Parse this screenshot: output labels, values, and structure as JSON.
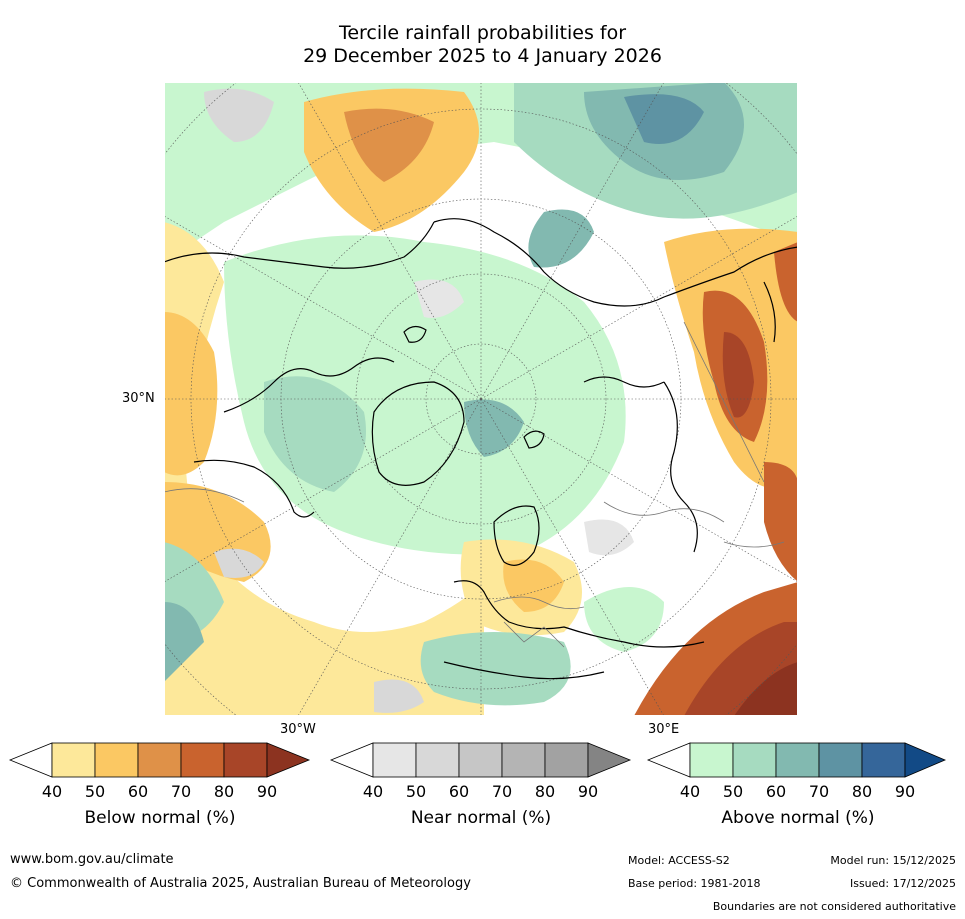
{
  "title": {
    "line1": "Tercile rainfall probabilities for",
    "line2": "29 December 2025 to 4 January 2026"
  },
  "map": {
    "lat_label": "30°N",
    "lon_labels": {
      "west": "30°W",
      "east": "30°E"
    },
    "colors": {
      "below": [
        "#fde89a",
        "#fbc863",
        "#df9148",
        "#c9632e",
        "#a84528",
        "#8c3320"
      ],
      "near": [
        "#e6e6e6",
        "#d8d8d8",
        "#c6c6c6",
        "#b4b4b4",
        "#a2a2a2",
        "#848484"
      ],
      "above": [
        "#c8f6cf",
        "#a6dbc0",
        "#82b9b0",
        "#5e93a3",
        "#35669a",
        "#124a86"
      ]
    }
  },
  "colorbars": [
    {
      "id": "below",
      "label": "Below normal (%)",
      "ticks": [
        "40",
        "50",
        "60",
        "70",
        "80",
        "90"
      ]
    },
    {
      "id": "near",
      "label": "Near normal (%)",
      "ticks": [
        "40",
        "50",
        "60",
        "70",
        "80",
        "90"
      ]
    },
    {
      "id": "above",
      "label": "Above normal (%)",
      "ticks": [
        "40",
        "50",
        "60",
        "70",
        "80",
        "90"
      ]
    }
  ],
  "footer": {
    "url": "www.bom.gov.au/climate",
    "copyright": "© Commonwealth of Australia 2025, Australian Bureau of Meteorology",
    "model": "Model: ACCESS-S2",
    "base_period": "Base period: 1981-2018",
    "model_run": "Model run: 15/12/2025",
    "issued": "Issued: 17/12/2025",
    "disclaimer": "Boundaries are not considered authoritative"
  }
}
